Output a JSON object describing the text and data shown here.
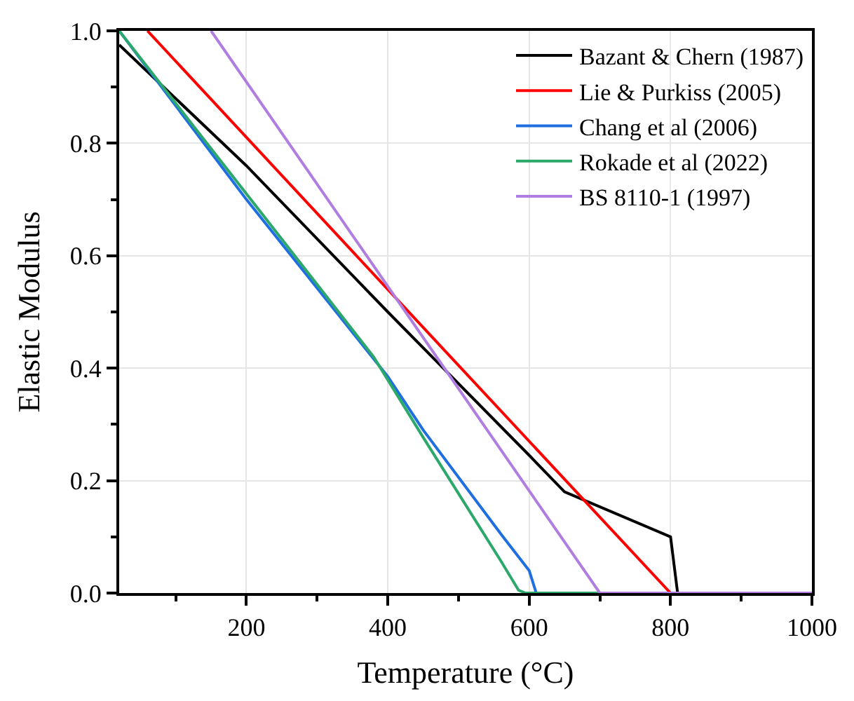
{
  "chart_data": {
    "type": "line",
    "xlabel": "Temperature (°C)",
    "ylabel": "Elastic Modulus",
    "xlim": [
      20,
      1000
    ],
    "xticks": [
      200,
      400,
      600,
      800,
      1000
    ],
    "ylim": [
      0,
      1
    ],
    "yticks": [
      {
        "value": 0,
        "label": "0.0"
      },
      0.2,
      0.4,
      0.6,
      0.8,
      {
        "value": 1,
        "label": "1.0"
      }
    ],
    "grid": true,
    "legend": "top right",
    "marker": "none",
    "line_style": "solid",
    "series": [
      {
        "name": "Bazant & Chern (1987)",
        "color": "#000000",
        "x": [
          20,
          200,
          400,
          600,
          650,
          800,
          810,
          1000
        ],
        "values": [
          0.975,
          0.76,
          0.5,
          0.245,
          0.18,
          0.1,
          0,
          0
        ]
      },
      {
        "name": "Lie & Purkiss (2005)",
        "color": "#ff0000",
        "x": [
          60,
          400,
          800,
          1000
        ],
        "values": [
          1,
          0.54,
          0,
          0
        ]
      },
      {
        "name": "Chang et al (2006)",
        "color": "#1f6fe0",
        "x": [
          20,
          200,
          400,
          450,
          560,
          600,
          610,
          1000
        ],
        "values": [
          1,
          0.7,
          0.385,
          0.29,
          0.105,
          0.04,
          0,
          0
        ]
      },
      {
        "name": "Rokade et al (2022)",
        "color": "#2ca86a",
        "x": [
          20,
          200,
          380,
          450,
          560,
          585,
          595,
          1000
        ],
        "values": [
          1,
          0.71,
          0.42,
          0.277,
          0.057,
          0.005,
          0,
          0
        ]
      },
      {
        "name": "BS 8110-1 (1997)",
        "color": "#b07ee0",
        "x": [
          150,
          700,
          1000
        ],
        "values": [
          1,
          0,
          0
        ]
      }
    ]
  }
}
